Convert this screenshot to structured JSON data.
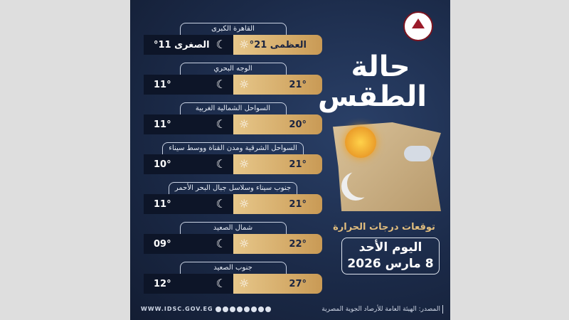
{
  "regions": [
    {
      "name": "القاهرة الكبرى",
      "max": "العظمى 21°",
      "min": "الصغرى 11°"
    },
    {
      "name": "الوجه البحري",
      "max": "21°",
      "min": "11°"
    },
    {
      "name": "السواحل الشمالية الغربية",
      "max": "20°",
      "min": "11°"
    },
    {
      "name": "السواحل الشرقية ومدن القناة ووسط سيناء",
      "max": "21°",
      "min": "10°"
    },
    {
      "name": "جنوب سيناء وسلاسل جبال البحر الأحمر",
      "max": "21°",
      "min": "11°"
    },
    {
      "name": "شمال الصعيد",
      "max": "22°",
      "min": "09°"
    },
    {
      "name": "جنوب الصعيد",
      "max": "27°",
      "min": "12°"
    }
  ],
  "icons": {
    "day": "sun-icon",
    "night": "crescent-moon-icon"
  },
  "title_line1": "حالة",
  "title_line2": "الطقس",
  "subtitle": "توقعات درجات الحرارة",
  "day": "اليوم الأحد",
  "date": "8 مارس 2026",
  "website": "WWW.IDSC.GOV.EG",
  "source": "المصدر: الهيئة العامة للأرصاد الجوية المصرية",
  "colors": {
    "gold": "#d9b06e",
    "navy": "#1b2a48",
    "dark_bar": "#0d1528"
  }
}
